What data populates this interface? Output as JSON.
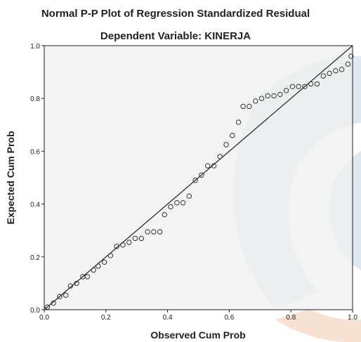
{
  "chart_data": {
    "type": "scatter",
    "title": "Normal P-P Plot of Regression Standardized Residual",
    "subtitle": "Dependent Variable: KINERJA",
    "xlabel": "Observed Cum Prob",
    "ylabel": "Expected Cum Prob",
    "xlim": [
      0,
      1
    ],
    "ylim": [
      0,
      1
    ],
    "x_ticks": [
      "0.0",
      "0.2",
      "0.4",
      "0.6",
      "0.8",
      "1.0"
    ],
    "y_ticks": [
      "0.0",
      "0.2",
      "0.4",
      "0.6",
      "0.8",
      "1.0"
    ],
    "grid": false,
    "reference_line": {
      "from": [
        0,
        0
      ],
      "to": [
        1,
        1
      ]
    },
    "series": [
      {
        "points": [
          [
            0.01,
            0.01
          ],
          [
            0.03,
            0.025
          ],
          [
            0.05,
            0.05
          ],
          [
            0.07,
            0.055
          ],
          [
            0.085,
            0.09
          ],
          [
            0.105,
            0.1
          ],
          [
            0.125,
            0.125
          ],
          [
            0.14,
            0.125
          ],
          [
            0.16,
            0.15
          ],
          [
            0.175,
            0.165
          ],
          [
            0.195,
            0.18
          ],
          [
            0.215,
            0.205
          ],
          [
            0.235,
            0.24
          ],
          [
            0.255,
            0.245
          ],
          [
            0.275,
            0.255
          ],
          [
            0.295,
            0.27
          ],
          [
            0.315,
            0.27
          ],
          [
            0.335,
            0.295
          ],
          [
            0.355,
            0.295
          ],
          [
            0.375,
            0.295
          ],
          [
            0.39,
            0.36
          ],
          [
            0.41,
            0.39
          ],
          [
            0.43,
            0.405
          ],
          [
            0.45,
            0.405
          ],
          [
            0.47,
            0.43
          ],
          [
            0.49,
            0.49
          ],
          [
            0.51,
            0.51
          ],
          [
            0.53,
            0.545
          ],
          [
            0.55,
            0.545
          ],
          [
            0.57,
            0.58
          ],
          [
            0.59,
            0.625
          ],
          [
            0.61,
            0.66
          ],
          [
            0.63,
            0.71
          ],
          [
            0.645,
            0.77
          ],
          [
            0.665,
            0.77
          ],
          [
            0.685,
            0.79
          ],
          [
            0.705,
            0.8
          ],
          [
            0.725,
            0.81
          ],
          [
            0.745,
            0.81
          ],
          [
            0.765,
            0.815
          ],
          [
            0.785,
            0.83
          ],
          [
            0.805,
            0.845
          ],
          [
            0.825,
            0.845
          ],
          [
            0.845,
            0.845
          ],
          [
            0.865,
            0.855
          ],
          [
            0.885,
            0.855
          ],
          [
            0.905,
            0.885
          ],
          [
            0.925,
            0.895
          ],
          [
            0.945,
            0.905
          ],
          [
            0.965,
            0.91
          ],
          [
            0.985,
            0.93
          ],
          [
            0.995,
            0.96
          ]
        ]
      }
    ]
  },
  "colors": {
    "plot_background": "#f0f0f0",
    "axis": "#222222",
    "point_stroke": "#333333",
    "reference_line": "#222222",
    "watermark_blue": "#d7e4ef",
    "watermark_orange": "#f6dccc"
  }
}
